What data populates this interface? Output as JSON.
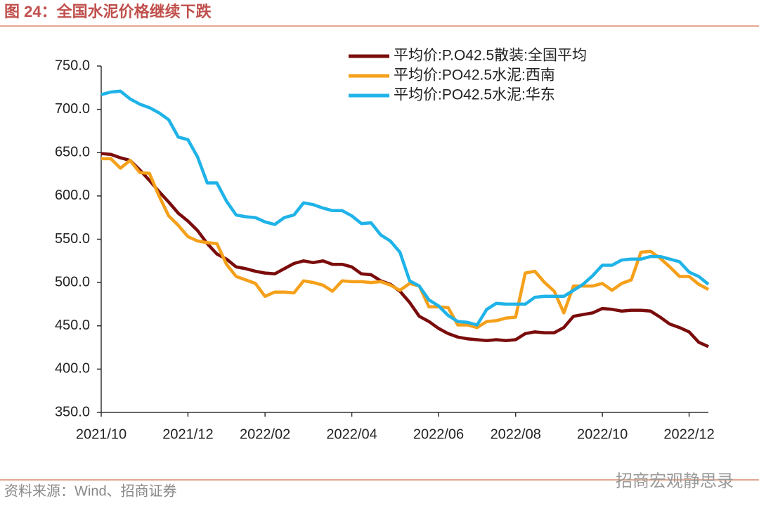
{
  "header": {
    "title": "图 24：全国水泥价格继续下跌"
  },
  "chart_data": {
    "type": "line",
    "categories": [
      "2021/10",
      null,
      null,
      null,
      null,
      null,
      null,
      null,
      null,
      "2021/12",
      null,
      null,
      null,
      null,
      null,
      null,
      null,
      "2022/02",
      null,
      null,
      null,
      null,
      null,
      null,
      null,
      null,
      "2022/04",
      null,
      null,
      null,
      null,
      null,
      null,
      null,
      null,
      "2022/06",
      null,
      null,
      null,
      null,
      null,
      null,
      null,
      "2022/08",
      null,
      null,
      null,
      null,
      null,
      null,
      null,
      null,
      "2022/10",
      null,
      null,
      null,
      null,
      null,
      null,
      null,
      null,
      "2022/12",
      null,
      null
    ],
    "series": [
      {
        "name": "平均价:P.O42.5散装:全国平均",
        "color": "#7b0c0c",
        "values": [
          649,
          648,
          644,
          641,
          630,
          618,
          605,
          593,
          580,
          571,
          560,
          545,
          533,
          527,
          518,
          516,
          513,
          511,
          510,
          516,
          522,
          525,
          523,
          525,
          521,
          521,
          518,
          510,
          509,
          502,
          498,
          490,
          477,
          461,
          455,
          447,
          441,
          437,
          435,
          434,
          433,
          434,
          433,
          434,
          441,
          443,
          442,
          442,
          448,
          461,
          463,
          465,
          470,
          469,
          467,
          468,
          468,
          467,
          460,
          452,
          448,
          443,
          431,
          426
        ]
      },
      {
        "name": "平均价:PO42.5水泥:西南",
        "color": "#f5a01a",
        "values": [
          643,
          643,
          632,
          641,
          627,
          626,
          600,
          577,
          566,
          553,
          548,
          546,
          545,
          521,
          507,
          503,
          499,
          484,
          489,
          489,
          488,
          502,
          500,
          497,
          490,
          502,
          501,
          501,
          500,
          501,
          497,
          491,
          499,
          496,
          472,
          472,
          471,
          451,
          451,
          448,
          455,
          456,
          459,
          460,
          511,
          513,
          500,
          490,
          465,
          496,
          496,
          496,
          499,
          491,
          499,
          503,
          535,
          536,
          528,
          518,
          507,
          507,
          498,
          492
        ]
      },
      {
        "name": "平均价:PO42.5水泥:华东",
        "color": "#1fb3e8",
        "values": [
          717,
          720,
          721,
          712,
          706,
          702,
          696,
          688,
          668,
          665,
          645,
          615,
          615,
          594,
          578,
          576,
          575,
          570,
          567,
          575,
          578,
          592,
          590,
          586,
          583,
          583,
          577,
          568,
          569,
          555,
          548,
          535,
          502,
          496,
          480,
          473,
          462,
          455,
          454,
          451,
          469,
          476,
          475,
          475,
          475,
          483,
          484,
          484,
          484,
          491,
          498,
          508,
          520,
          520,
          526,
          527,
          527,
          530,
          530,
          527,
          524,
          512,
          507,
          498
        ]
      }
    ],
    "ylim": [
      350,
      750
    ],
    "yticks": [
      {
        "value": 350,
        "label": "350.0"
      },
      {
        "value": 400,
        "label": "400.0"
      },
      {
        "value": 450,
        "label": "450.0"
      },
      {
        "value": 500,
        "label": "500.0"
      },
      {
        "value": 550,
        "label": "550.0"
      },
      {
        "value": 600,
        "label": "600.0"
      },
      {
        "value": 650,
        "label": "650.0"
      },
      {
        "value": 700,
        "label": "700.0"
      },
      {
        "value": 750,
        "label": "750.0"
      }
    ],
    "grid": false,
    "legend": "top-right"
  },
  "footer": {
    "source": "资料来源：Wind、招商证券",
    "watermark": "招商宏观静思录"
  }
}
